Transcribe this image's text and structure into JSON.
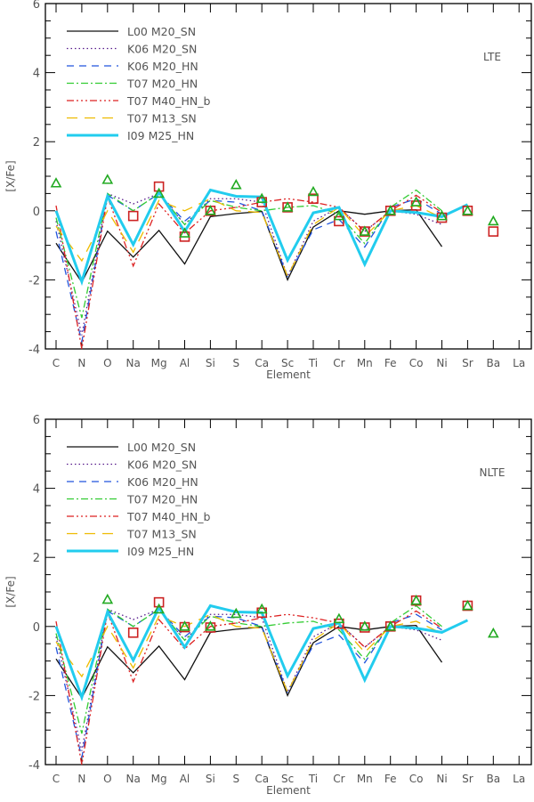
{
  "chart_data": [
    {
      "type": "line",
      "panel_label": "LTE",
      "xlabel": "Element",
      "ylabel": "[X/Fe]",
      "ylim": [
        -4,
        6
      ],
      "yticks": [
        "-4",
        "-2",
        "0",
        "2",
        "4",
        "6"
      ],
      "categories": [
        "C",
        "N",
        "O",
        "Na",
        "Mg",
        "Al",
        "Si",
        "S",
        "Ca",
        "Sc",
        "Ti",
        "Cr",
        "Mn",
        "Fe",
        "Co",
        "Ni",
        "Sr",
        "Ba",
        "La"
      ],
      "legend_position": "top-left",
      "series_ref": "models",
      "observations": {
        "triangles": {
          "color": "#22aa22",
          "points": {
            "C": 0.8,
            "O": 0.9,
            "Mg": 0.5,
            "Al": -0.65,
            "Si": 0.0,
            "S": 0.75,
            "Ca": 0.35,
            "Sc": 0.1,
            "Ti": 0.55,
            "Cr": -0.15,
            "Mn": -0.6,
            "Fe": 0.0,
            "Co": 0.25,
            "Ni": -0.15,
            "Sr": 0.0,
            "Ba": -0.3
          }
        },
        "squares": {
          "color": "#cc2222",
          "points": {
            "Na": -0.15,
            "Mg": 0.7,
            "Al": -0.75,
            "Si": 0.0,
            "Ca": 0.25,
            "Sc": 0.1,
            "Ti": 0.35,
            "Cr": -0.3,
            "Mn": -0.6,
            "Fe": 0.0,
            "Co": 0.15,
            "Ni": -0.2,
            "Sr": 0.0,
            "Ba": -0.6
          }
        }
      }
    },
    {
      "type": "line",
      "panel_label": "NLTE",
      "xlabel": "Element",
      "ylabel": "[X/Fe]",
      "ylim": [
        -4,
        6
      ],
      "yticks": [
        "-4",
        "-2",
        "0",
        "2",
        "4",
        "6"
      ],
      "categories": [
        "C",
        "N",
        "O",
        "Na",
        "Mg",
        "Al",
        "Si",
        "S",
        "Ca",
        "Sc",
        "Ti",
        "Cr",
        "Mn",
        "Fe",
        "Co",
        "Ni",
        "Sr",
        "Ba",
        "La"
      ],
      "legend_position": "top-left",
      "series_ref": "models",
      "observations": {
        "triangles": {
          "color": "#22aa22",
          "points": {
            "O": 0.78,
            "Mg": 0.5,
            "Al": 0.0,
            "Si": 0.0,
            "S": 0.37,
            "Ca": 0.5,
            "Cr": 0.22,
            "Mn": 0.0,
            "Fe": 0.0,
            "Co": 0.75,
            "Sr": 0.6,
            "Ba": -0.2
          }
        },
        "squares": {
          "color": "#cc2222",
          "points": {
            "Na": -0.18,
            "Mg": 0.7,
            "Al": -0.02,
            "Si": -0.03,
            "Ca": 0.4,
            "Cr": 0.08,
            "Mn": -0.03,
            "Fe": 0.0,
            "Co": 0.75,
            "Sr": 0.6
          }
        }
      }
    }
  ],
  "models": [
    {
      "name": "L00  M20_SN",
      "color": "#111111",
      "style": "solid",
      "values": {
        "C": -0.94,
        "N": -2.07,
        "O": -0.59,
        "Na": -1.34,
        "Mg": -0.57,
        "Al": -1.54,
        "Si": -0.17,
        "S": -0.08,
        "Ca": -0.02,
        "Sc": -2.0,
        "Ti": -0.47,
        "Cr": 0.0,
        "Mn": -0.1,
        "Fe": 0.0,
        "Co": 0.03,
        "Ni": -1.04
      }
    },
    {
      "name": "K06  M20_SN",
      "color": "#551a8b",
      "style": "dotted",
      "values": {
        "C": -0.3,
        "N": -3.6,
        "O": 0.5,
        "Na": 0.2,
        "Mg": 0.5,
        "Al": -0.4,
        "Si": 0.35,
        "S": 0.35,
        "Ca": 0.25,
        "Sc": -1.9,
        "Ti": -0.3,
        "Cr": 0.1,
        "Mn": -0.6,
        "Fe": 0.0,
        "Co": -0.1,
        "Ni": -0.4
      }
    },
    {
      "name": "K06  M20_HN",
      "color": "#2255dd",
      "style": "dashed",
      "values": {
        "C": -0.6,
        "N": -3.8,
        "O": 0.45,
        "Na": 0.0,
        "Mg": 0.5,
        "Al": -0.3,
        "Si": 0.3,
        "S": 0.25,
        "Ca": 0.0,
        "Sc": -1.9,
        "Ti": -0.55,
        "Cr": -0.25,
        "Mn": -1.05,
        "Fe": 0.1,
        "Co": 0.35,
        "Ni": -0.1
      }
    },
    {
      "name": "T07  M20_HN",
      "color": "#33cc33",
      "style": "dashdot",
      "values": {
        "C": -0.2,
        "N": -3.1,
        "O": 0.5,
        "Na": 0.0,
        "Mg": 0.5,
        "Al": -0.4,
        "Si": 0.3,
        "S": 0.1,
        "Ca": 0.0,
        "Sc": 0.1,
        "Ti": 0.15,
        "Cr": -0.1,
        "Mn": -0.95,
        "Fe": 0.1,
        "Co": 0.6,
        "Ni": 0.0
      }
    },
    {
      "name": "T07  M40_HN_b",
      "color": "#dd2222",
      "style": "dashdotdot",
      "values": {
        "C": 0.15,
        "N": -4.0,
        "O": 0.4,
        "Na": -1.6,
        "Mg": 0.2,
        "Al": -0.65,
        "Si": 0.0,
        "S": 0.1,
        "Ca": 0.25,
        "Sc": 0.35,
        "Ti": 0.25,
        "Cr": 0.1,
        "Mn": -0.6,
        "Fe": 0.0,
        "Co": 0.45,
        "Ni": -0.05
      }
    },
    {
      "name": "T07  M13_SN",
      "color": "#eebb00",
      "style": "longdash",
      "values": {
        "C": -0.45,
        "N": -1.45,
        "O": 0.0,
        "Na": -1.2,
        "Mg": 0.3,
        "Al": 0.0,
        "Si": 0.35,
        "S": 0.0,
        "Ca": -0.05,
        "Sc": -1.9,
        "Ti": -0.4,
        "Cr": 0.1,
        "Mn": -0.75,
        "Fe": 0.0,
        "Co": 0.15,
        "Ni": -0.2
      }
    },
    {
      "name": "I09  M25_HN",
      "color": "#22ccee",
      "style": "thick",
      "values": {
        "C": 0.0,
        "N": -2.05,
        "O": 0.42,
        "Na": -0.98,
        "Mg": 0.55,
        "Al": -0.6,
        "Si": 0.6,
        "S": 0.42,
        "Ca": 0.4,
        "Sc": -1.43,
        "Ti": -0.06,
        "Cr": 0.1,
        "Mn": -1.55,
        "Fe": 0.0,
        "Co": -0.05,
        "Ni": -0.17,
        "Sr": 0.18
      }
    }
  ]
}
